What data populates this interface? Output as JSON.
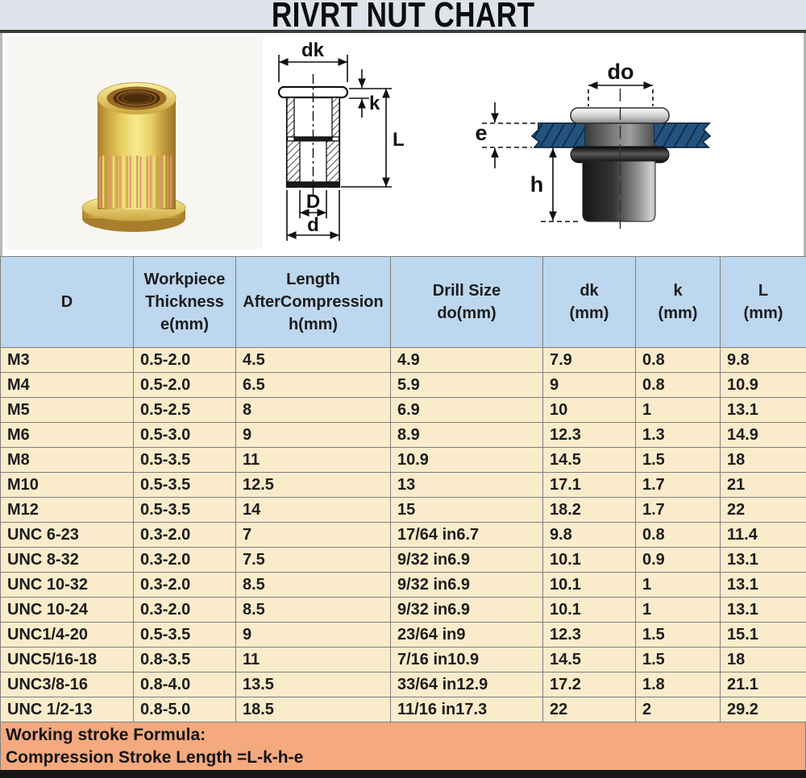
{
  "title": "RIVRT NUT CHART",
  "figures": {
    "photo": {
      "description": "yellow zinc plated knurled rivet nut with flange"
    },
    "cross_section": {
      "labels": {
        "dk": "dk",
        "k": "k",
        "L": "L",
        "D": "D",
        "d": "d"
      }
    },
    "installed": {
      "labels": {
        "do": "do",
        "e": "e",
        "h": "h"
      }
    }
  },
  "table": {
    "headers": [
      {
        "lines": [
          "D"
        ]
      },
      {
        "lines": [
          "Workpiece",
          "Thickness",
          "e(mm)"
        ]
      },
      {
        "lines": [
          "Length",
          "AfterCompression",
          "h(mm)"
        ]
      },
      {
        "lines": [
          "Drill Size",
          "do(mm)"
        ]
      },
      {
        "lines": [
          "dk",
          "(mm)"
        ]
      },
      {
        "lines": [
          "k",
          "(mm)"
        ]
      },
      {
        "lines": [
          "L",
          "(mm)"
        ]
      }
    ],
    "rows": [
      [
        "M3",
        "0.5-2.0",
        "4.5",
        "4.9",
        "7.9",
        "0.8",
        "9.8"
      ],
      [
        "M4",
        "0.5-2.0",
        "6.5",
        "5.9",
        "9",
        "0.8",
        "10.9"
      ],
      [
        "M5",
        "0.5-2.5",
        "8",
        "6.9",
        "10",
        "1",
        "13.1"
      ],
      [
        "M6",
        "0.5-3.0",
        "9",
        "8.9",
        "12.3",
        "1.3",
        "14.9"
      ],
      [
        "M8",
        "0.5-3.5",
        "11",
        "10.9",
        "14.5",
        "1.5",
        "18"
      ],
      [
        "M10",
        "0.5-3.5",
        "12.5",
        "13",
        "17.1",
        "1.7",
        "21"
      ],
      [
        "M12",
        "0.5-3.5",
        "14",
        "15",
        "18.2",
        "1.7",
        "22"
      ],
      [
        "UNC 6-23",
        "0.3-2.0",
        "7",
        "17/64 in6.7",
        "9.8",
        "0.8",
        "11.4"
      ],
      [
        "UNC 8-32",
        "0.3-2.0",
        "7.5",
        "9/32 in6.9",
        "10.1",
        "0.9",
        "13.1"
      ],
      [
        "UNC 10-32",
        "0.3-2.0",
        "8.5",
        "9/32 in6.9",
        "10.1",
        "1",
        "13.1"
      ],
      [
        "UNC 10-24",
        "0.3-2.0",
        "8.5",
        "9/32 in6.9",
        "10.1",
        "1",
        "13.1"
      ],
      [
        "UNC1/4-20",
        "0.5-3.5",
        "9",
        "23/64 in9",
        "12.3",
        "1.5",
        "15.1"
      ],
      [
        "UNC5/16-18",
        "0.8-3.5",
        "11",
        "7/16 in10.9",
        "14.5",
        "1.5",
        "18"
      ],
      [
        "UNC3/8-16",
        "0.8-4.0",
        "13.5",
        "33/64 in12.9",
        "17.2",
        "1.8",
        "21.1"
      ],
      [
        "UNC 1/2-13",
        "0.8-5.0",
        "18.5",
        "11/16 in17.3",
        "22",
        "2",
        "29.2"
      ]
    ]
  },
  "footer": {
    "line1": "Working stroke Formula:",
    "line2": "Compression Stroke Length =L-k-h-e"
  },
  "colors": {
    "title_bg": "#dde3e9",
    "header_bg": "#bdd7ee",
    "row_bg": "#faeccb",
    "footer_bg": "#f4a97e",
    "grid": "#7f7f7f",
    "plate_blue": "#24527e"
  }
}
